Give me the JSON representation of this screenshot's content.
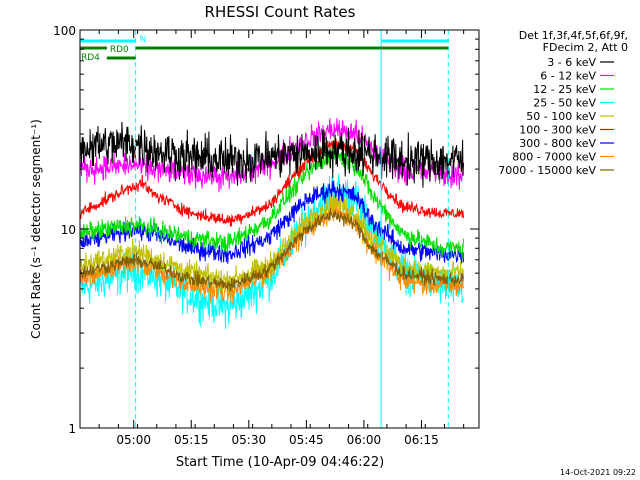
{
  "chart_data": {
    "type": "line",
    "title": "RHESSI Count Rates",
    "xlabel": "Start Time (10-Apr-09 04:46:22)",
    "ylabel": "Count Rate (s⁻¹ detector segment⁻¹)",
    "y_scale": "log",
    "ylim": [
      1,
      100
    ],
    "y_ticks": [
      {
        "value": 1,
        "label": "1"
      },
      {
        "value": 10,
        "label": "10"
      },
      {
        "value": 100,
        "label": "100"
      }
    ],
    "x_unit": "minutes",
    "xlim": [
      286,
      390
    ],
    "x_ticks": [
      {
        "value": 300,
        "label": "05:00"
      },
      {
        "value": 315,
        "label": "05:15"
      },
      {
        "value": 330,
        "label": "05:30"
      },
      {
        "value": 345,
        "label": "05:45"
      },
      {
        "value": 360,
        "label": "06:00"
      },
      {
        "value": 375,
        "label": "06:15"
      }
    ],
    "legend": {
      "header": [
        "Det 1f,3f,4f,5f,6f,9f,",
        "FDecim 2, Att 0"
      ],
      "placement": "right"
    },
    "series": [
      {
        "name": "3 - 6 keV",
        "color": "#000000",
        "noise": 0.16,
        "points": [
          [
            286,
            26
          ],
          [
            300,
            27
          ],
          [
            305,
            25
          ],
          [
            315,
            23
          ],
          [
            325,
            22
          ],
          [
            335,
            23
          ],
          [
            345,
            24
          ],
          [
            352,
            25
          ],
          [
            358,
            24
          ],
          [
            362,
            24
          ],
          [
            370,
            22
          ],
          [
            380,
            22
          ],
          [
            386,
            22
          ]
        ]
      },
      {
        "name": "6 - 12 keV",
        "color": "#ff00ff",
        "noise": 0.09,
        "points": [
          [
            286,
            20
          ],
          [
            300,
            21
          ],
          [
            305,
            20
          ],
          [
            315,
            19
          ],
          [
            325,
            18
          ],
          [
            335,
            21
          ],
          [
            345,
            28
          ],
          [
            352,
            32
          ],
          [
            358,
            30
          ],
          [
            362,
            25
          ],
          [
            370,
            20
          ],
          [
            380,
            19
          ],
          [
            386,
            18
          ]
        ]
      },
      {
        "name": "12 - 25 keV",
        "color": "#00e000",
        "noise": 0.07,
        "points": [
          [
            286,
            9.5
          ],
          [
            300,
            10.5
          ],
          [
            305,
            10
          ],
          [
            315,
            9
          ],
          [
            325,
            8.5
          ],
          [
            335,
            11
          ],
          [
            345,
            19
          ],
          [
            352,
            24
          ],
          [
            358,
            21
          ],
          [
            362,
            15
          ],
          [
            370,
            9.5
          ],
          [
            380,
            8
          ],
          [
            386,
            8
          ]
        ]
      },
      {
        "name": "25 - 50 keV",
        "color": "#00ffff",
        "noise": 0.14,
        "points": [
          [
            286,
            5
          ],
          [
            300,
            6.2
          ],
          [
            305,
            5.8
          ],
          [
            315,
            4.6
          ],
          [
            325,
            4
          ],
          [
            335,
            5.5
          ],
          [
            345,
            11
          ],
          [
            352,
            16
          ],
          [
            358,
            14
          ],
          [
            362,
            10
          ],
          [
            370,
            6.2
          ],
          [
            380,
            5.2
          ],
          [
            386,
            5
          ]
        ]
      },
      {
        "name": "50 - 100 keV",
        "color": "#c0c000",
        "noise": 0.08,
        "points": [
          [
            286,
            6.5
          ],
          [
            300,
            7.8
          ],
          [
            305,
            7.2
          ],
          [
            315,
            6
          ],
          [
            325,
            5.5
          ],
          [
            335,
            6.5
          ],
          [
            345,
            11
          ],
          [
            352,
            14
          ],
          [
            358,
            12
          ],
          [
            362,
            9
          ],
          [
            370,
            6.5
          ],
          [
            380,
            6
          ],
          [
            386,
            6
          ]
        ]
      },
      {
        "name": "100 - 300 keV",
        "color": "#ff0000",
        "noise": 0.045,
        "points": [
          [
            286,
            12
          ],
          [
            300,
            16.5
          ],
          [
            302,
            17
          ],
          [
            305,
            15
          ],
          [
            315,
            12
          ],
          [
            325,
            11
          ],
          [
            335,
            13
          ],
          [
            345,
            22
          ],
          [
            352,
            27
          ],
          [
            358,
            25
          ],
          [
            362,
            19
          ],
          [
            370,
            13
          ],
          [
            380,
            12
          ],
          [
            386,
            12
          ]
        ]
      },
      {
        "name": "300 - 800 keV",
        "color": "#0000ff",
        "noise": 0.07,
        "points": [
          [
            286,
            8.5
          ],
          [
            300,
            10
          ],
          [
            305,
            9.5
          ],
          [
            315,
            8
          ],
          [
            325,
            7.5
          ],
          [
            335,
            9
          ],
          [
            345,
            14
          ],
          [
            352,
            16
          ],
          [
            358,
            14.5
          ],
          [
            362,
            11
          ],
          [
            370,
            8
          ],
          [
            380,
            7.5
          ],
          [
            386,
            7.5
          ]
        ]
      },
      {
        "name": "800 - 7000 keV",
        "color": "#ff8c00",
        "noise": 0.08,
        "points": [
          [
            286,
            5.5
          ],
          [
            300,
            6.8
          ],
          [
            305,
            6.3
          ],
          [
            315,
            5.2
          ],
          [
            325,
            4.8
          ],
          [
            335,
            6
          ],
          [
            345,
            10
          ],
          [
            352,
            12.5
          ],
          [
            358,
            11
          ],
          [
            362,
            8
          ],
          [
            370,
            5.5
          ],
          [
            380,
            5.2
          ],
          [
            386,
            5.2
          ]
        ]
      },
      {
        "name": "7000 - 15000 keV",
        "color": "#806000",
        "noise": 0.05,
        "points": [
          [
            286,
            6
          ],
          [
            300,
            7
          ],
          [
            305,
            6.6
          ],
          [
            315,
            5.6
          ],
          [
            325,
            5.2
          ],
          [
            335,
            6.2
          ],
          [
            345,
            10
          ],
          [
            352,
            12
          ],
          [
            358,
            10.5
          ],
          [
            362,
            8
          ],
          [
            370,
            6
          ],
          [
            380,
            5.6
          ],
          [
            386,
            5.6
          ]
        ]
      }
    ],
    "annotations": {
      "vertical_lines": [
        {
          "x": 286,
          "style": "solid",
          "color": "#00ffff"
        },
        {
          "x": 300.5,
          "style": "dashed",
          "color": "#00ffff"
        },
        {
          "x": 364.5,
          "style": "solid",
          "color": "#00ffff"
        },
        {
          "x": 382,
          "style": "dashed",
          "color": "#00ffff"
        }
      ],
      "bars": [
        {
          "label": "N",
          "color": "#00ffff",
          "segments": [
            [
              286,
              300.5
            ],
            [
              364.5,
              382
            ]
          ],
          "level": 1
        },
        {
          "label": "RD0",
          "color": "#008000",
          "segments": [
            [
              286,
              293
            ],
            [
              300.5,
              382
            ]
          ],
          "level": 2
        },
        {
          "label": "RD4",
          "color": "#008000",
          "segments": [
            [
              293,
              300.5
            ]
          ],
          "level": 3
        }
      ]
    }
  },
  "timestamp": "14-Oct-2021 09:22"
}
